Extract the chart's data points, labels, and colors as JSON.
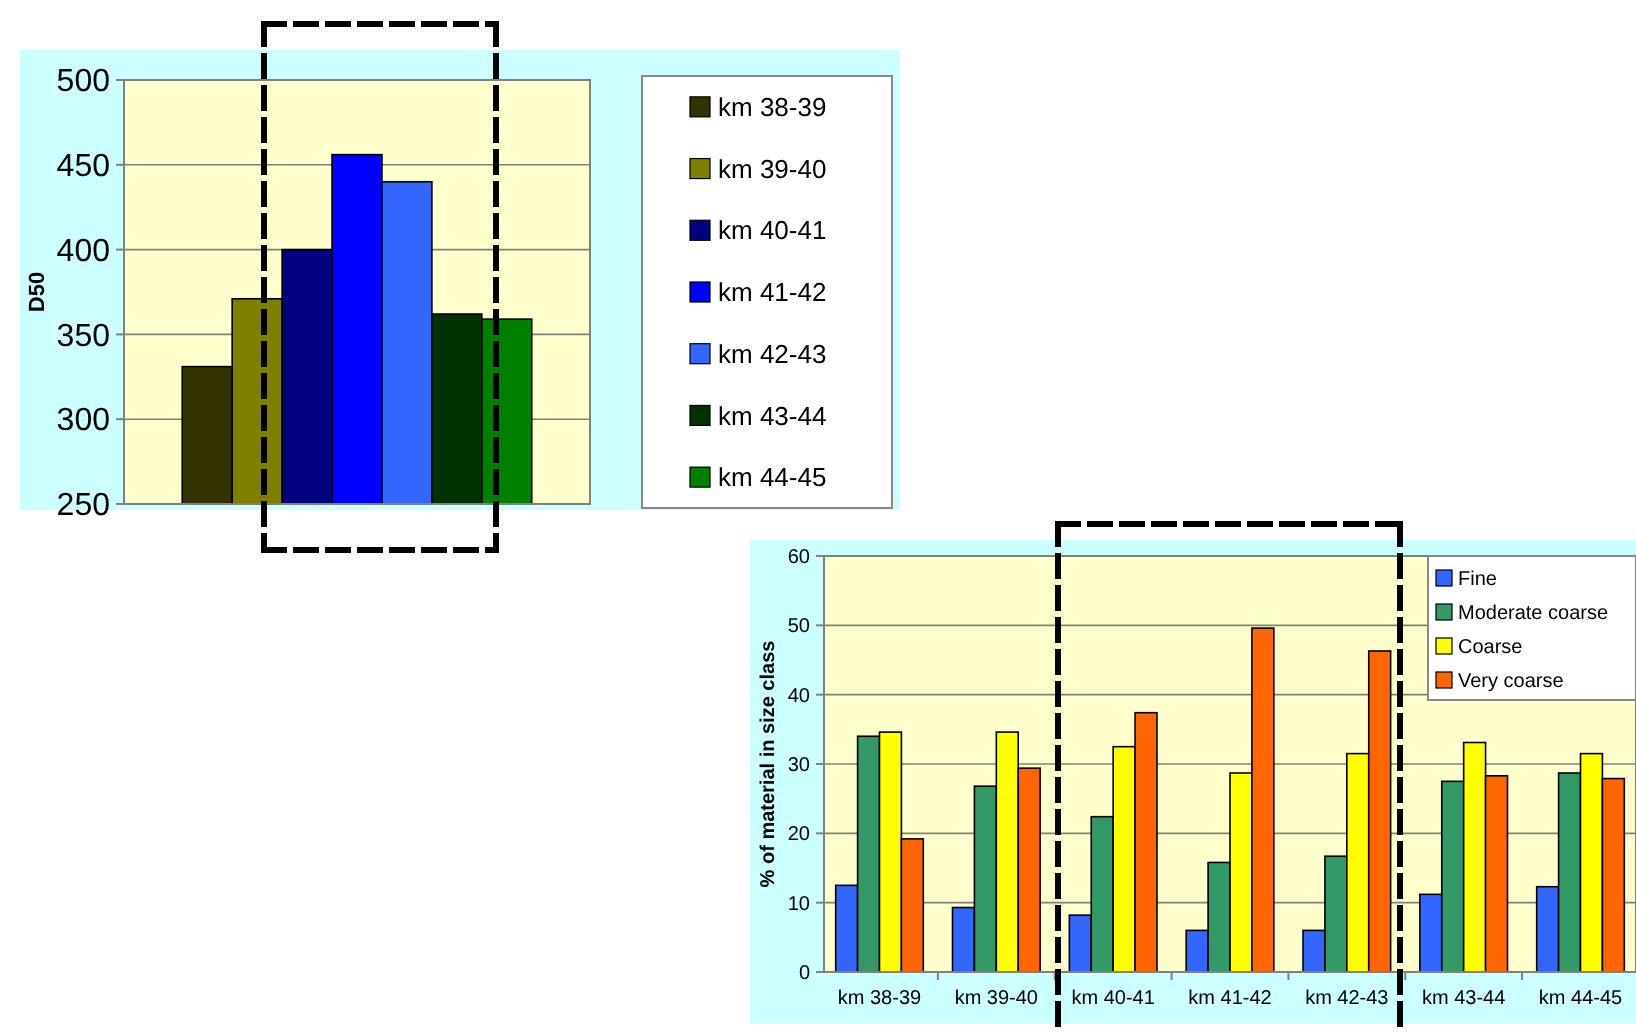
{
  "chart_data": [
    {
      "type": "bar",
      "ylabel": "D50",
      "categories": [
        null
      ],
      "series": [
        {
          "name": "km 38-39",
          "color": "#333300",
          "values": [
            331
          ]
        },
        {
          "name": "km 39-40",
          "color": "#808000",
          "values": [
            371
          ]
        },
        {
          "name": "km 40-41",
          "color": "#000080",
          "values": [
            400
          ]
        },
        {
          "name": "km 41-42",
          "color": "#0000ff",
          "values": [
            456
          ]
        },
        {
          "name": "km 42-43",
          "color": "#3366ff",
          "values": [
            440
          ]
        },
        {
          "name": "km 43-44",
          "color": "#003300",
          "values": [
            362
          ]
        },
        {
          "name": "km 44-45",
          "color": "#008000",
          "values": [
            359
          ]
        }
      ],
      "ylim": [
        250,
        500
      ],
      "yticks": [
        250,
        300,
        350,
        400,
        450,
        500
      ],
      "grid": "y",
      "legend": "right",
      "tick_labels": "y"
    },
    {
      "type": "bar",
      "ylabel": "% of material in size class",
      "categories": [
        "km 38-39",
        "km 39-40",
        "km 40-41",
        "km 41-42",
        "km 42-43",
        "km 43-44",
        "km 44-45"
      ],
      "series": [
        {
          "name": "Fine",
          "color": "#3366ff",
          "values": [
            12.5,
            9.3,
            8.2,
            6,
            6,
            11.2,
            12.3
          ]
        },
        {
          "name": "Moderate coarse",
          "color": "#339966",
          "values": [
            34,
            26.8,
            22.4,
            15.8,
            16.7,
            27.5,
            28.7
          ]
        },
        {
          "name": "Coarse",
          "color": "#ffff00",
          "values": [
            34.6,
            34.6,
            32.5,
            28.7,
            31.5,
            33.1,
            31.5
          ]
        },
        {
          "name": "Very coarse",
          "color": "#ff6600",
          "values": [
            19.2,
            29.4,
            37.4,
            49.6,
            46.3,
            28.3,
            27.9
          ]
        }
      ],
      "ylim": [
        0,
        60
      ],
      "yticks": [
        0,
        10,
        20,
        30,
        40,
        50,
        60
      ],
      "grid": "y",
      "legend": "top right"
    }
  ]
}
